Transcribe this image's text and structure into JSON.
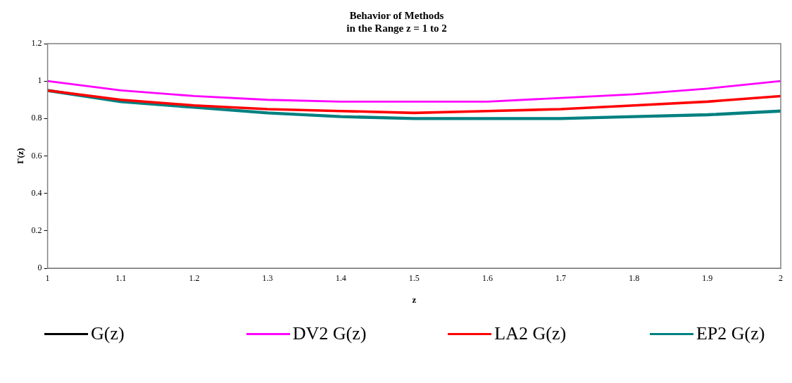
{
  "chart_data": {
    "type": "line",
    "title": "Behavior of Methods\nin the Range z = 1 to 2",
    "xlabel": "z",
    "ylabel": "Γ(z)",
    "x": [
      1,
      1.1,
      1.2,
      1.3,
      1.4,
      1.5,
      1.6,
      1.7,
      1.8,
      1.9,
      2
    ],
    "series": [
      {
        "name": "G(z)",
        "color": "#000000",
        "values": [
          null,
          null,
          null,
          null,
          null,
          null,
          null,
          null,
          null,
          null,
          null
        ]
      },
      {
        "name": "DV2 G(z)",
        "color": "#ff00ff",
        "values": [
          1,
          0.95,
          0.92,
          0.9,
          0.89,
          0.89,
          0.89,
          0.91,
          0.93,
          0.96,
          1
        ]
      },
      {
        "name": "LA2 G(z)",
        "color": "#ff0000",
        "values": [
          0.95,
          0.9,
          0.87,
          0.85,
          0.84,
          0.83,
          0.84,
          0.85,
          0.87,
          0.89,
          0.92
        ]
      },
      {
        "name": "EP2 G(z)",
        "color": "#008080",
        "values": [
          0.95,
          0.89,
          0.86,
          0.83,
          0.81,
          0.8,
          0.8,
          0.8,
          0.81,
          0.82,
          0.84
        ]
      }
    ],
    "xlim": [
      1,
      2
    ],
    "xticks": [
      1,
      1.1,
      1.2,
      1.3,
      1.4,
      1.5,
      1.6,
      1.7,
      1.8,
      1.9,
      2
    ],
    "ylim": [
      0,
      1.2
    ],
    "yticks": [
      0,
      0.2,
      0.4,
      0.6,
      0.8,
      1,
      1.2
    ],
    "grid": false,
    "legend": "bottom",
    "marker": "none",
    "line_style": "solid"
  }
}
